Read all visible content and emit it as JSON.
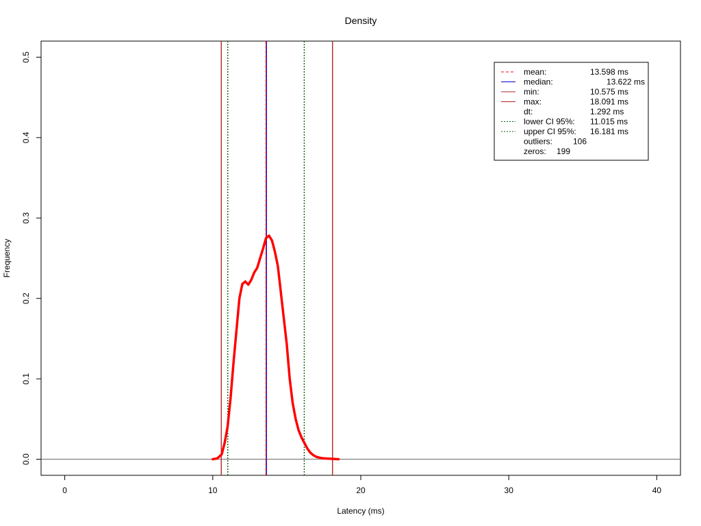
{
  "chart_data": {
    "type": "line",
    "title": "Density",
    "xlabel": "Latency (ms)",
    "ylabel": "Frequency",
    "xlim": [
      -1.6,
      41.6
    ],
    "ylim": [
      -0.02,
      0.52
    ],
    "xticks": [
      0,
      10,
      20,
      30,
      40
    ],
    "yticks": [
      0.0,
      0.1,
      0.2,
      0.3,
      0.4,
      0.5
    ],
    "xtick_labels": [
      "0",
      "10",
      "20",
      "30",
      "40"
    ],
    "ytick_labels": [
      "0.0",
      "0.1",
      "0.2",
      "0.3",
      "0.4",
      "0.5"
    ],
    "grid": false,
    "legend_position": "top-right",
    "colors": {
      "density": "#ff0000",
      "mean": "#ff0000",
      "median": "#0000cd",
      "minmax": "#b22222",
      "ci": "#006400",
      "baseline": "#808080"
    },
    "series": [
      {
        "x": [
          10.0,
          10.3,
          10.6,
          10.8,
          11.0,
          11.2,
          11.4,
          11.6,
          11.8,
          12.0,
          12.2,
          12.4,
          12.6,
          12.8,
          13.0,
          13.2,
          13.4,
          13.6,
          13.8,
          14.0,
          14.2,
          14.4,
          14.6,
          14.8,
          15.0,
          15.2,
          15.4,
          15.6,
          15.8,
          16.0,
          16.2,
          16.4,
          16.6,
          16.8,
          17.0,
          17.2,
          17.5,
          18.0,
          18.5
        ],
        "y": [
          0.0,
          0.001,
          0.006,
          0.02,
          0.04,
          0.075,
          0.12,
          0.16,
          0.2,
          0.218,
          0.221,
          0.217,
          0.223,
          0.232,
          0.238,
          0.25,
          0.262,
          0.275,
          0.278,
          0.272,
          0.258,
          0.24,
          0.208,
          0.175,
          0.143,
          0.1,
          0.07,
          0.05,
          0.036,
          0.027,
          0.02,
          0.013,
          0.008,
          0.005,
          0.003,
          0.002,
          0.001,
          0.0005,
          0.0
        ]
      }
    ],
    "vlines": [
      {
        "key": "mean",
        "x": 13.598,
        "style": "dashed"
      },
      {
        "key": "median",
        "x": 13.622,
        "style": "solid"
      },
      {
        "key": "min",
        "x": 10.575,
        "style": "solid"
      },
      {
        "key": "max",
        "x": 18.091,
        "style": "solid"
      },
      {
        "key": "ci_lower",
        "x": 11.015,
        "style": "dotted"
      },
      {
        "key": "ci_upper",
        "x": 16.181,
        "style": "dotted"
      }
    ],
    "legend": [
      {
        "label": "mean:",
        "value": "13.598 ms",
        "line": "dashed",
        "color": "#ff0000"
      },
      {
        "label": "median:",
        "value": "13.622 ms",
        "line": "solid",
        "color": "#0000cd"
      },
      {
        "label": "min:",
        "value": "10.575 ms",
        "line": "solid",
        "color": "#b22222"
      },
      {
        "label": "max:",
        "value": "18.091 ms",
        "line": "solid",
        "color": "#b22222"
      },
      {
        "label": "dt:",
        "value": "1.292 ms",
        "line": "none",
        "color": ""
      },
      {
        "label": "lower CI 95%:",
        "value": "11.015 ms",
        "line": "dotted",
        "color": "#006400"
      },
      {
        "label": "upper CI 95%:",
        "value": "16.181 ms",
        "line": "dotted",
        "color": "#006400"
      },
      {
        "label": "outliers:",
        "value": "106",
        "line": "none",
        "color": ""
      },
      {
        "label": "zeros:",
        "value": "199",
        "line": "none",
        "color": ""
      }
    ]
  }
}
